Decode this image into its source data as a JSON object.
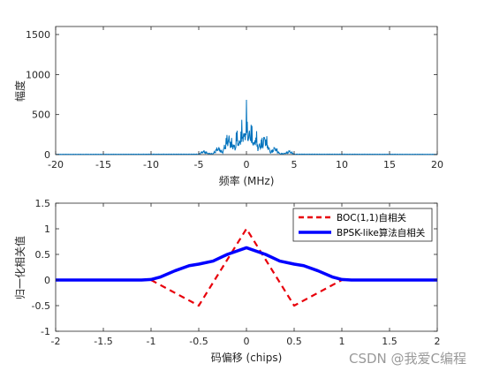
{
  "chart_data": [
    {
      "type": "line",
      "title": "",
      "xlabel": "频率 (MHz)",
      "ylabel": "幅度",
      "xlim": [
        -20,
        20
      ],
      "ylim": [
        0,
        1600
      ],
      "xticks": [
        "-20",
        "-15",
        "-10",
        "-5",
        "0",
        "5",
        "10",
        "15",
        "20"
      ],
      "yticks": [
        "0",
        "500",
        "1000",
        "1500"
      ],
      "grid": false,
      "series": [
        {
          "color": "#0072BD",
          "description_values": "Power spectrum, near zero everywhere except between about -4.5 and 4.5 MHz",
          "x": [
            -20,
            -5,
            -4.5,
            -4,
            -3.5,
            -3,
            -2.5,
            -2,
            -1.5,
            -1.2,
            -1,
            -0.8,
            -0.5,
            -0.2,
            0,
            0.2,
            0.5,
            0.8,
            1,
            1.2,
            1.5,
            2,
            2.5,
            3,
            3.5,
            4,
            4.5,
            5,
            20
          ],
          "y": [
            5,
            8,
            60,
            20,
            15,
            120,
            40,
            300,
            200,
            120,
            380,
            160,
            450,
            300,
            700,
            300,
            450,
            160,
            380,
            120,
            200,
            300,
            40,
            120,
            15,
            20,
            60,
            8,
            5
          ]
        }
      ]
    },
    {
      "type": "line",
      "title": "",
      "xlabel": "码偏移 (chips)",
      "ylabel": "归一化相关值",
      "xlim": [
        -2,
        2
      ],
      "ylim": [
        -1,
        1.5
      ],
      "xticks": [
        "-2",
        "-1.5",
        "-1",
        "-0.5",
        "0",
        "0.5",
        "1",
        "1.5",
        "2"
      ],
      "yticks": [
        "-1",
        "-0.5",
        "0",
        "0.5",
        "1",
        "1.5"
      ],
      "grid": false,
      "legend_position": "top-right",
      "series": [
        {
          "name": "BOC(1,1)自相关",
          "color": "#E8000B",
          "style": "dashed",
          "x": [
            -2,
            -1,
            -0.5,
            0,
            0.5,
            1,
            2
          ],
          "y": [
            0,
            0,
            -0.5,
            1,
            -0.5,
            0,
            0
          ]
        },
        {
          "name": "BPSK-like算法自相关",
          "color": "#0000FF",
          "style": "solid",
          "x": [
            -2,
            -1.1,
            -1,
            -0.9,
            -0.75,
            -0.6,
            -0.5,
            -0.35,
            -0.2,
            0,
            0.2,
            0.35,
            0.5,
            0.6,
            0.75,
            0.9,
            1,
            1.1,
            2
          ],
          "y": [
            0,
            0,
            0.01,
            0.06,
            0.18,
            0.28,
            0.31,
            0.37,
            0.5,
            0.63,
            0.5,
            0.37,
            0.31,
            0.28,
            0.18,
            0.06,
            0.01,
            0,
            0
          ]
        }
      ]
    }
  ],
  "watermark": "CSDN @我爱C编程"
}
